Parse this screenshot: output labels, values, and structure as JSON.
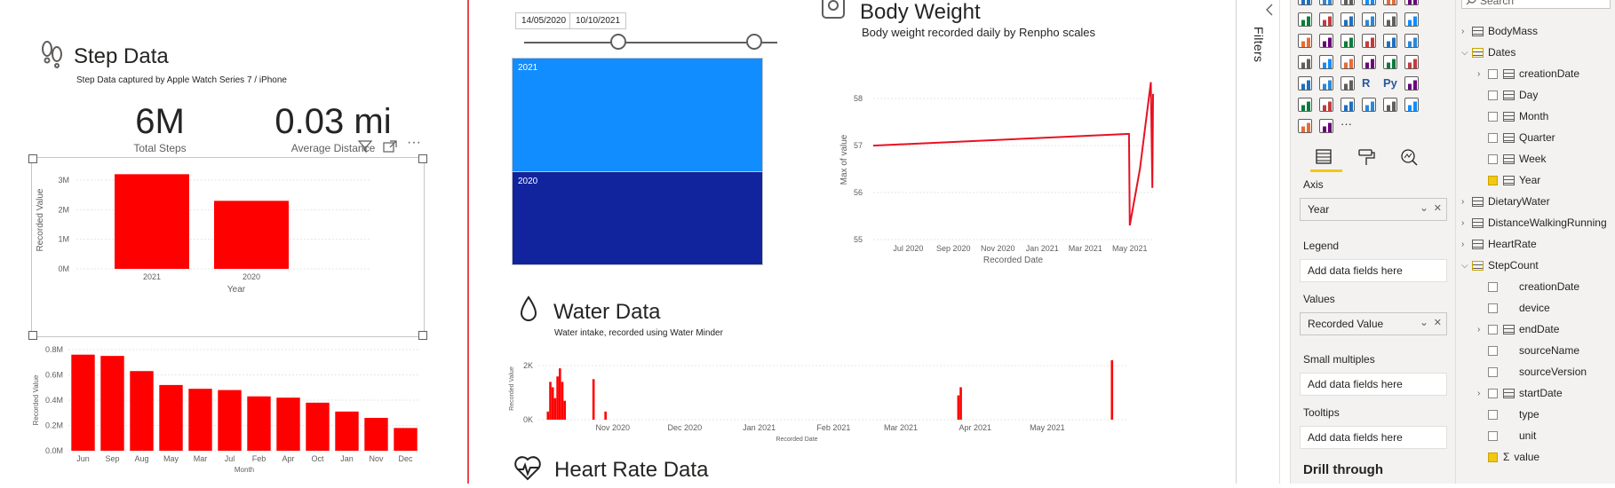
{
  "step_panel": {
    "title": "Step Data",
    "subtitle": "Step Data captured by Apple Watch Series 7 / iPhone",
    "card_total_value": "6M",
    "card_total_label": "Total Steps",
    "card_distance_value": "0.03 mi",
    "card_distance_label": "Average Distance"
  },
  "water_panel": {
    "title": "Water Data",
    "subtitle": "Water intake, recorded using Water Minder"
  },
  "weight_panel": {
    "title": "Body Weight",
    "subtitle": "Body weight recorded daily by Renpho scales"
  },
  "heart_panel": {
    "title": "Heart Rate Data"
  },
  "slicer": {
    "start_date": "14/05/2020",
    "end_date": "10/10/2021",
    "year_2021": "2021",
    "year_2020": "2020"
  },
  "filters_label": "Filters",
  "viz_pane": {
    "axis_label": "Axis",
    "axis_value": "Year",
    "legend_label": "Legend",
    "legend_placeholder": "Add data fields here",
    "values_label": "Values",
    "values_value": "Recorded Value",
    "small_multiples_label": "Small multiples",
    "small_multiples_placeholder": "Add data fields here",
    "tooltips_label": "Tooltips",
    "tooltips_placeholder": "Add data fields here",
    "drill_through_label": "Drill through"
  },
  "fields_pane": {
    "search_placeholder": "Search",
    "tables": [
      {
        "label": "BodyMass",
        "indent": 0,
        "type": "table",
        "checked": false,
        "expand": ">"
      },
      {
        "label": "Dates",
        "indent": 0,
        "type": "table",
        "checked": true,
        "expand": "v"
      },
      {
        "label": "creationDate",
        "indent": 1,
        "type": "date",
        "checked": false,
        "expand": ">"
      },
      {
        "label": "Day",
        "indent": 1,
        "type": "calc",
        "checked": false,
        "expand": ""
      },
      {
        "label": "Month",
        "indent": 1,
        "type": "calc",
        "checked": false,
        "expand": ""
      },
      {
        "label": "Quarter",
        "indent": 1,
        "type": "calc",
        "checked": false,
        "expand": ""
      },
      {
        "label": "Week",
        "indent": 1,
        "type": "calc",
        "checked": false,
        "expand": ""
      },
      {
        "label": "Year",
        "indent": 1,
        "type": "calc",
        "checked": true,
        "expand": ""
      },
      {
        "label": "DietaryWater",
        "indent": 0,
        "type": "table",
        "checked": false,
        "expand": ">"
      },
      {
        "label": "DistanceWalkingRunning",
        "indent": 0,
        "type": "table",
        "checked": false,
        "expand": ">"
      },
      {
        "label": "HeartRate",
        "indent": 0,
        "type": "table",
        "checked": false,
        "expand": ">"
      },
      {
        "label": "StepCount",
        "indent": 0,
        "type": "table",
        "checked": true,
        "expand": "v"
      },
      {
        "label": "creationDate",
        "indent": 1,
        "type": "none",
        "checked": false,
        "expand": ""
      },
      {
        "label": "device",
        "indent": 1,
        "type": "none",
        "checked": false,
        "expand": ""
      },
      {
        "label": "endDate",
        "indent": 1,
        "type": "date",
        "checked": false,
        "expand": ">"
      },
      {
        "label": "sourceName",
        "indent": 1,
        "type": "none",
        "checked": false,
        "expand": ""
      },
      {
        "label": "sourceVersion",
        "indent": 1,
        "type": "none",
        "checked": false,
        "expand": ""
      },
      {
        "label": "startDate",
        "indent": 1,
        "type": "date",
        "checked": false,
        "expand": ">"
      },
      {
        "label": "type",
        "indent": 1,
        "type": "none",
        "checked": false,
        "expand": ""
      },
      {
        "label": "unit",
        "indent": 1,
        "type": "none",
        "checked": false,
        "expand": ""
      },
      {
        "label": "value",
        "indent": 1,
        "type": "sigma",
        "checked": true,
        "expand": ""
      }
    ]
  },
  "colors": {
    "bar_red": "#ff0000",
    "slicer_2021": "#118dff",
    "slicer_2020": "#12239e",
    "line_red": "#e81123",
    "accent_yellow": "#f2c811"
  },
  "chart_data": [
    {
      "type": "bar",
      "id": "steps-by-year",
      "categories": [
        "2021",
        "2020"
      ],
      "values": [
        3200000,
        2300000
      ],
      "xlabel": "Year",
      "ylabel": "Recorded Value",
      "yticks": [
        "0M",
        "1M",
        "2M",
        "3M"
      ],
      "ylim": [
        0,
        3300000
      ]
    },
    {
      "type": "bar",
      "id": "steps-by-month",
      "categories": [
        "Jun",
        "Sep",
        "Aug",
        "May",
        "Mar",
        "Jul",
        "Feb",
        "Apr",
        "Oct",
        "Jan",
        "Nov",
        "Dec"
      ],
      "values": [
        0.76,
        0.75,
        0.63,
        0.52,
        0.49,
        0.48,
        0.43,
        0.42,
        0.38,
        0.31,
        0.26,
        0.18
      ],
      "xlabel": "Month",
      "ylabel": "Recorded Value",
      "yticks": [
        "0.0M",
        "0.2M",
        "0.4M",
        "0.6M",
        "0.8M"
      ],
      "ylim": [
        0,
        0.8
      ]
    },
    {
      "type": "line",
      "id": "body-weight",
      "xlabel": "Recorded Date",
      "ylabel": "Max of value",
      "xticks": [
        "Jul 2020",
        "Sep 2020",
        "Nov 2020",
        "Jan 2021",
        "Mar 2021",
        "May 2021"
      ],
      "yticks": [
        "55",
        "56",
        "57",
        "58"
      ],
      "ylim": [
        55,
        58.4
      ],
      "points": [
        [
          "2020-05-14",
          57.0
        ],
        [
          "2021-04-30",
          57.25
        ],
        [
          "2021-05-01",
          55.3
        ],
        [
          "2021-05-15",
          56.5
        ],
        [
          "2021-05-30",
          58.35
        ],
        [
          "2021-06-01",
          56.1
        ],
        [
          "2021-06-02",
          58.1
        ]
      ]
    },
    {
      "type": "bar",
      "id": "water-intake",
      "xlabel": "Recorded Date",
      "ylabel": "Recorded Value",
      "xticks": [
        "Nov 2020",
        "Dec 2020",
        "Jan 2021",
        "Feb 2021",
        "Mar 2021",
        "Apr 2021",
        "May 2021"
      ],
      "yticks": [
        "0K",
        "2K"
      ],
      "ylim": [
        0,
        2300
      ],
      "points": [
        [
          "2020-10-05",
          300
        ],
        [
          "2020-10-06",
          1400
        ],
        [
          "2020-10-07",
          1200
        ],
        [
          "2020-10-08",
          800
        ],
        [
          "2020-10-09",
          1600
        ],
        [
          "2020-10-10",
          1900
        ],
        [
          "2020-10-11",
          1400
        ],
        [
          "2020-10-12",
          700
        ],
        [
          "2020-10-24",
          1500
        ],
        [
          "2020-10-29",
          300
        ],
        [
          "2021-03-25",
          900
        ],
        [
          "2021-03-26",
          1200
        ],
        [
          "2021-05-28",
          2200
        ]
      ]
    }
  ]
}
